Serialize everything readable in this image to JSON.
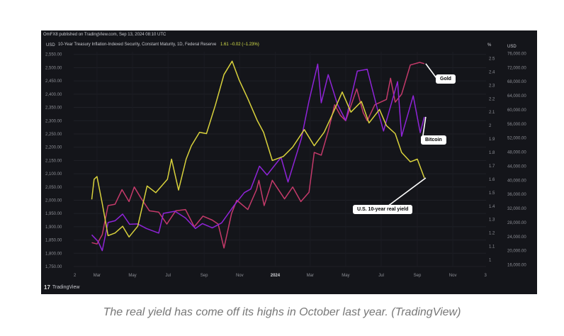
{
  "header": {
    "publisher_line": "OmFX8 published on TradingView.com, Sep 13, 2024 08:10 UTC",
    "legend_name": "10-Year Treasury Inflation-Indexed Security, Constant Maturity, 1D, Federal Reserve",
    "legend_value": "1.61  −0.02 (−1.23%)",
    "unit_left": "USD",
    "unit_pct": "%",
    "unit_right": "USD",
    "brand": "TradingView",
    "brand_mark": "17"
  },
  "callouts": {
    "gold": "Gold",
    "bitcoin": "Bitcoin",
    "real_yield": "U.S. 10-year real yield"
  },
  "caption": "The real yield has come off its highs in October last year. (TradingView)",
  "colors": {
    "background": "#14151a",
    "gold": "#c43a6a",
    "bitcoin": "#8f24d8",
    "real_yield": "#d9d23c",
    "axis_text": "#8d8f96"
  },
  "chart_data": {
    "type": "line",
    "x_tick_labels": [
      "2",
      "Mar",
      "May",
      "Jul",
      "Sep",
      "Nov",
      "2024",
      "Mar",
      "May",
      "Jul",
      "Sep",
      "Nov",
      "3"
    ],
    "left_axis": {
      "unit": "USD",
      "ticks": [
        "2,550.00",
        "2,500.00",
        "2,450.00",
        "2,400.00",
        "2,350.00",
        "2,300.00",
        "2,250.00",
        "2,200.00",
        "2,150.00",
        "2,100.00",
        "2,050.00",
        "2,000.00",
        "1,950.00",
        "1,900.00",
        "1,850.00",
        "1,800.00",
        "1,750.00"
      ],
      "range": [
        1750,
        2560
      ]
    },
    "pct_axis": {
      "unit": "%",
      "ticks": [
        "2.5",
        "2.4",
        "2.3",
        "2.2",
        "2.1",
        "2",
        "1.9",
        "1.8",
        "1.7",
        "1.6",
        "1.5",
        "1.4",
        "1.3",
        "1.2",
        "1.1",
        "1"
      ],
      "range": [
        0.95,
        2.55
      ]
    },
    "right_axis": {
      "unit": "USD",
      "ticks": [
        "76,000.00",
        "72,000.00",
        "68,000.00",
        "64,000.00",
        "60,000.00",
        "56,000.00",
        "52,000.00",
        "48,000.00",
        "44,000.00",
        "40,000.00",
        "36,000.00",
        "32,000.00",
        "28,000.00",
        "24,000.00",
        "20,000.00",
        "16,000.00"
      ],
      "range": [
        15500,
        76500
      ]
    },
    "series": [
      {
        "name": "Gold",
        "axis": "left",
        "color": "#c43a6a",
        "points": [
          [
            "2023-02-20",
            1840
          ],
          [
            "2023-03-01",
            1835
          ],
          [
            "2023-03-10",
            1870
          ],
          [
            "2023-03-20",
            1980
          ],
          [
            "2023-04-01",
            1985
          ],
          [
            "2023-04-13",
            2040
          ],
          [
            "2023-04-25",
            1995
          ],
          [
            "2023-05-04",
            2050
          ],
          [
            "2023-05-15",
            2010
          ],
          [
            "2023-05-30",
            1960
          ],
          [
            "2023-06-15",
            1955
          ],
          [
            "2023-06-29",
            1910
          ],
          [
            "2023-07-14",
            1960
          ],
          [
            "2023-07-31",
            1965
          ],
          [
            "2023-08-15",
            1900
          ],
          [
            "2023-08-30",
            1940
          ],
          [
            "2023-09-15",
            1925
          ],
          [
            "2023-09-25",
            1910
          ],
          [
            "2023-10-05",
            1820
          ],
          [
            "2023-10-18",
            1950
          ],
          [
            "2023-10-27",
            2000
          ],
          [
            "2023-11-15",
            1965
          ],
          [
            "2023-11-30",
            2040
          ],
          [
            "2023-12-04",
            2075
          ],
          [
            "2023-12-13",
            1980
          ],
          [
            "2023-12-27",
            2075
          ],
          [
            "2024-01-17",
            2005
          ],
          [
            "2024-01-31",
            2050
          ],
          [
            "2024-02-14",
            1995
          ],
          [
            "2024-02-28",
            2030
          ],
          [
            "2024-03-08",
            2180
          ],
          [
            "2024-03-20",
            2170
          ],
          [
            "2024-04-01",
            2260
          ],
          [
            "2024-04-12",
            2360
          ],
          [
            "2024-04-22",
            2320
          ],
          [
            "2024-05-01",
            2300
          ],
          [
            "2024-05-20",
            2420
          ],
          [
            "2024-05-31",
            2330
          ],
          [
            "2024-06-07",
            2300
          ],
          [
            "2024-06-20",
            2360
          ],
          [
            "2024-07-10",
            2380
          ],
          [
            "2024-07-17",
            2460
          ],
          [
            "2024-07-25",
            2370
          ],
          [
            "2024-08-05",
            2400
          ],
          [
            "2024-08-20",
            2510
          ],
          [
            "2024-09-05",
            2520
          ],
          [
            "2024-09-13",
            2515
          ]
        ]
      },
      {
        "name": "Bitcoin",
        "axis": "right",
        "color": "#8f24d8",
        "points": [
          [
            "2023-02-20",
            24500
          ],
          [
            "2023-03-03",
            22600
          ],
          [
            "2023-03-10",
            20000
          ],
          [
            "2023-03-20",
            28000
          ],
          [
            "2023-04-01",
            28500
          ],
          [
            "2023-04-14",
            30400
          ],
          [
            "2023-04-26",
            27500
          ],
          [
            "2023-05-10",
            27600
          ],
          [
            "2023-05-25",
            26300
          ],
          [
            "2023-06-15",
            25000
          ],
          [
            "2023-06-23",
            30600
          ],
          [
            "2023-07-13",
            31200
          ],
          [
            "2023-07-31",
            29300
          ],
          [
            "2023-08-17",
            26300
          ],
          [
            "2023-08-29",
            27700
          ],
          [
            "2023-09-15",
            26500
          ],
          [
            "2023-10-01",
            27900
          ],
          [
            "2023-10-23",
            33000
          ],
          [
            "2023-11-09",
            36500
          ],
          [
            "2023-11-20",
            37500
          ],
          [
            "2023-12-05",
            44000
          ],
          [
            "2023-12-18",
            41500
          ],
          [
            "2024-01-11",
            46500
          ],
          [
            "2024-01-23",
            39500
          ],
          [
            "2024-02-15",
            51900
          ],
          [
            "2024-02-28",
            62500
          ],
          [
            "2024-03-14",
            73000
          ],
          [
            "2024-03-20",
            62000
          ],
          [
            "2024-04-01",
            70000
          ],
          [
            "2024-04-17",
            61500
          ],
          [
            "2024-05-01",
            57000
          ],
          [
            "2024-05-21",
            71000
          ],
          [
            "2024-06-07",
            71500
          ],
          [
            "2024-06-24",
            60500
          ],
          [
            "2024-07-05",
            54000
          ],
          [
            "2024-07-29",
            68000
          ],
          [
            "2024-08-05",
            52500
          ],
          [
            "2024-08-25",
            64000
          ],
          [
            "2024-09-06",
            53500
          ],
          [
            "2024-09-13",
            58000
          ]
        ]
      },
      {
        "name": "U.S. 10-year real yield",
        "axis": "pct",
        "color": "#d9d23c",
        "points": [
          [
            "2023-02-20",
            1.45
          ],
          [
            "2023-02-24",
            1.6
          ],
          [
            "2023-03-01",
            1.62
          ],
          [
            "2023-03-10",
            1.42
          ],
          [
            "2023-03-20",
            1.18
          ],
          [
            "2023-04-01",
            1.2
          ],
          [
            "2023-04-14",
            1.25
          ],
          [
            "2023-04-25",
            1.17
          ],
          [
            "2023-05-10",
            1.25
          ],
          [
            "2023-05-26",
            1.55
          ],
          [
            "2023-06-10",
            1.5
          ],
          [
            "2023-06-30",
            1.6
          ],
          [
            "2023-07-07",
            1.75
          ],
          [
            "2023-07-19",
            1.52
          ],
          [
            "2023-08-01",
            1.75
          ],
          [
            "2023-08-10",
            1.85
          ],
          [
            "2023-08-24",
            1.95
          ],
          [
            "2023-09-05",
            1.94
          ],
          [
            "2023-09-20",
            2.15
          ],
          [
            "2023-10-05",
            2.38
          ],
          [
            "2023-10-19",
            2.48
          ],
          [
            "2023-10-31",
            2.34
          ],
          [
            "2023-11-15",
            2.2
          ],
          [
            "2023-12-01",
            2.04
          ],
          [
            "2023-12-12",
            1.95
          ],
          [
            "2023-12-27",
            1.74
          ],
          [
            "2024-01-15",
            1.77
          ],
          [
            "2024-01-31",
            1.84
          ],
          [
            "2024-02-20",
            1.97
          ],
          [
            "2024-03-08",
            1.85
          ],
          [
            "2024-03-25",
            1.95
          ],
          [
            "2024-04-10",
            2.1
          ],
          [
            "2024-04-25",
            2.25
          ],
          [
            "2024-05-10",
            2.1
          ],
          [
            "2024-05-28",
            2.18
          ],
          [
            "2024-06-10",
            2.02
          ],
          [
            "2024-06-28",
            2.12
          ],
          [
            "2024-07-10",
            2.0
          ],
          [
            "2024-07-25",
            1.94
          ],
          [
            "2024-08-05",
            1.8
          ],
          [
            "2024-08-20",
            1.73
          ],
          [
            "2024-09-01",
            1.75
          ],
          [
            "2024-09-13",
            1.61
          ]
        ]
      }
    ]
  }
}
